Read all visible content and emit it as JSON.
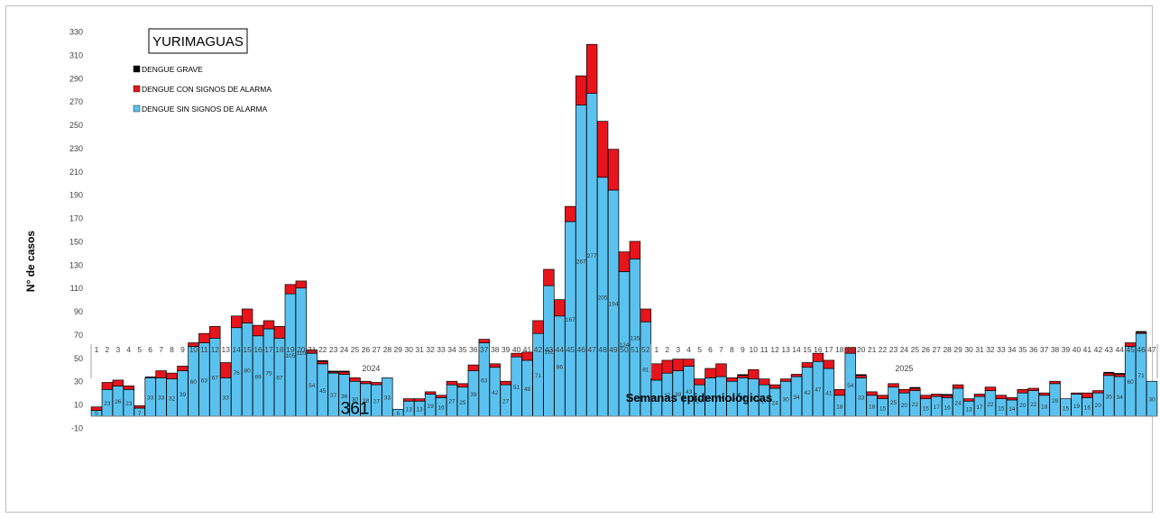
{
  "chart_data": {
    "type": "bar",
    "stacked": true,
    "title": "YURIMAGUAS",
    "xlabel": "Semanas epidemiológicas",
    "ylabel": "N° de casos",
    "ylim": [
      -10,
      330
    ],
    "yticks": [
      -10,
      10,
      30,
      50,
      70,
      90,
      110,
      130,
      150,
      170,
      190,
      210,
      230,
      250,
      270,
      290,
      310,
      330
    ],
    "grid": false,
    "legend_position": "top-left",
    "years": [
      {
        "label": "2024",
        "weeks": 52
      },
      {
        "label": "2025",
        "weeks": 47
      }
    ],
    "series": [
      {
        "name": "DENGUE SIN SIGNOS DE ALARMA",
        "color": "#5bc2ef",
        "values": [
          5,
          23,
          26,
          23,
          7,
          33,
          33,
          32,
          39,
          60,
          63,
          67,
          33,
          76,
          80,
          69,
          75,
          67,
          105,
          110,
          54,
          45,
          37,
          36,
          30,
          28,
          27,
          33,
          6,
          13,
          13,
          19,
          16,
          27,
          25,
          39,
          63,
          42,
          27,
          51,
          48,
          71,
          112,
          86,
          167,
          267,
          277,
          205,
          194,
          124,
          135,
          81,
          31,
          37,
          39,
          43,
          27,
          33,
          34,
          30,
          33,
          32,
          27,
          24,
          30,
          34,
          42,
          47,
          41,
          18,
          54,
          33,
          18,
          15,
          25,
          20,
          22,
          15,
          17,
          16,
          24,
          13,
          17,
          22,
          15,
          14,
          20,
          22,
          18,
          28,
          15,
          19,
          16,
          20,
          35,
          34,
          60,
          71,
          30
        ]
      },
      {
        "name": "DENGUE CON SIGNOS DE ALARMA",
        "color": "#e8141c",
        "values": [
          3,
          6,
          5,
          3,
          2,
          0,
          6,
          5,
          4,
          3,
          8,
          10,
          13,
          10,
          12,
          9,
          7,
          10,
          8,
          6,
          3,
          2,
          1,
          2,
          3,
          2,
          2,
          0,
          0,
          2,
          2,
          2,
          2,
          3,
          3,
          5,
          3,
          3,
          3,
          3,
          7,
          11,
          14,
          14,
          13,
          25,
          42,
          48,
          35,
          17,
          15,
          11,
          14,
          11,
          10,
          6,
          5,
          8,
          11,
          3,
          2,
          8,
          5,
          3,
          2,
          2,
          4,
          7,
          7,
          5,
          5,
          2,
          3,
          3,
          3,
          3,
          2,
          3,
          2,
          2,
          3,
          2,
          2,
          3,
          3,
          2,
          3,
          2,
          2,
          2,
          0,
          1,
          4,
          2,
          2,
          2,
          3,
          1,
          0
        ]
      },
      {
        "name": "DENGUE GRAVE",
        "color": "#000000",
        "values": [
          0,
          0,
          0,
          0,
          0,
          1,
          0,
          0,
          0,
          0,
          0,
          0,
          0,
          0,
          0,
          0,
          0,
          0,
          0,
          0,
          0,
          1,
          1,
          1,
          0,
          0,
          0,
          0,
          0,
          0,
          0,
          0,
          0,
          0,
          0,
          0,
          0,
          0,
          0,
          0,
          0,
          0,
          0,
          0,
          0,
          0,
          0,
          0,
          0,
          0,
          0,
          0,
          0,
          0,
          0,
          0,
          0,
          0,
          0,
          0,
          1,
          0,
          0,
          0,
          0,
          0,
          0,
          0,
          0,
          0,
          0,
          1,
          0,
          0,
          0,
          0,
          1,
          0,
          0,
          1,
          0,
          0,
          0,
          0,
          0,
          0,
          0,
          0,
          0,
          0,
          0,
          0,
          0,
          0,
          1,
          1,
          0,
          1,
          0
        ]
      }
    ],
    "data_labels": "DENGUE SIN SIGNOS DE ALARMA",
    "annotations": [
      {
        "text": "361",
        "week_index": 24
      }
    ]
  }
}
